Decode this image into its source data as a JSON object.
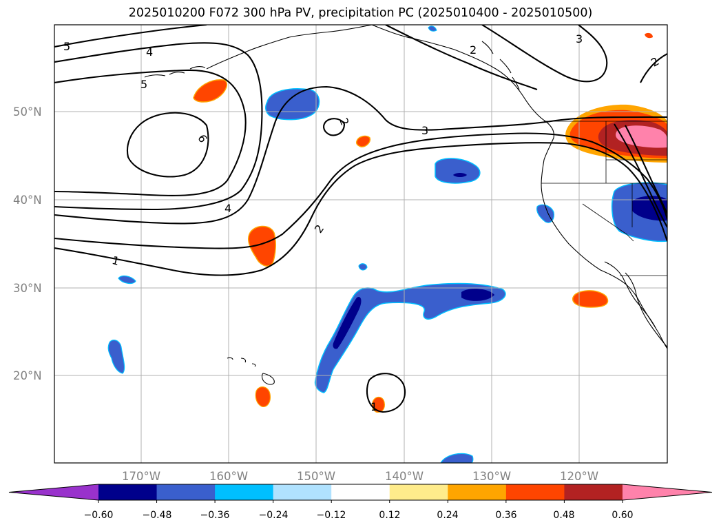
{
  "title": "2025010200 F072 300 hPa PV, precipitation PC (2025010400 - 2025010500)",
  "map": {
    "lat_labels": [
      "50°N",
      "40°N",
      "30°N",
      "20°N"
    ],
    "lon_labels": [
      "170°W",
      "160°W",
      "150°W",
      "140°W",
      "130°W",
      "120°W"
    ],
    "grid": true,
    "pv_contour_labels": [
      "1",
      "2",
      "3",
      "4",
      "5",
      "6"
    ]
  },
  "colorbar": {
    "tick_labels": [
      "−0.60",
      "−0.48",
      "−0.36",
      "−0.24",
      "−0.12",
      "0.12",
      "0.24",
      "0.36",
      "0.48",
      "0.60"
    ],
    "colors": [
      "#9932cc",
      "#00008b",
      "#3a5fcd",
      "#00bfff",
      "#b0e2ff",
      "#ffffff",
      "#ffec8b",
      "#ffa500",
      "#ff4500",
      "#b22222",
      "#ff82ab"
    ],
    "extend": "both"
  }
}
